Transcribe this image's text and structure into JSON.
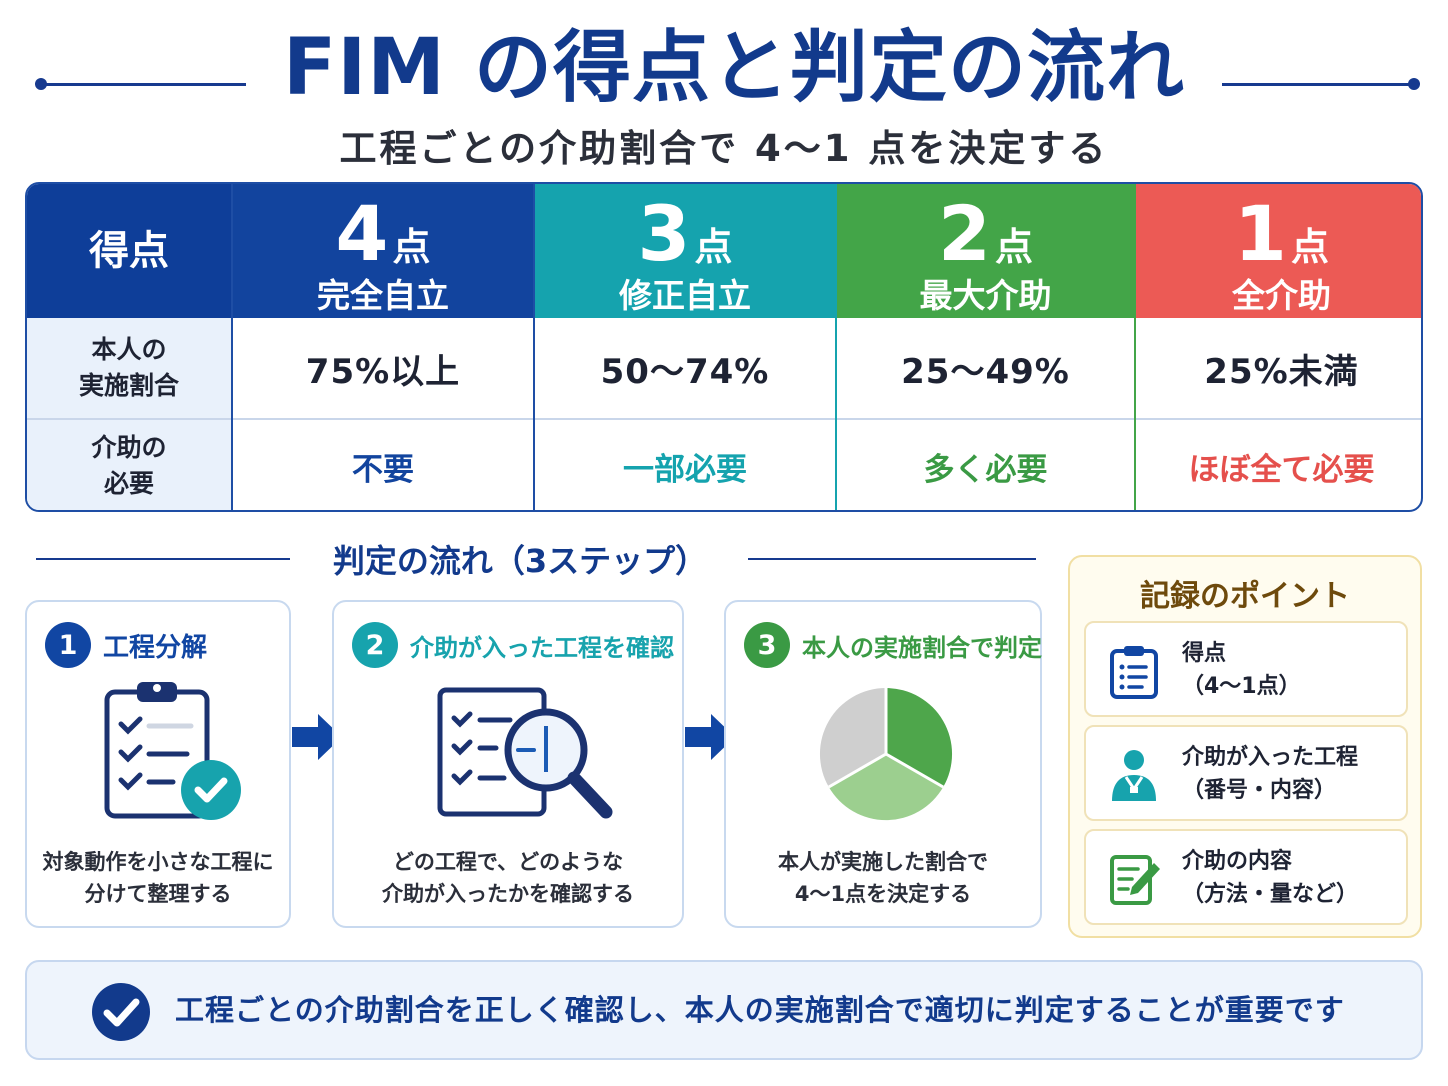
{
  "header": {
    "title": "FIM の得点と判定の流れ",
    "subtitle": "工程ごとの介助割合で 4～1 点を決定する"
  },
  "score_table": {
    "header_label": "得点",
    "row1_label_line1": "本人の",
    "row1_label_line2": "実施割合",
    "row2_label_line1": "介助の",
    "row2_label_line2": "必要",
    "columns": [
      {
        "score": "4",
        "unit": "点",
        "name": "完全自立",
        "ratio": "75%以上",
        "need": "不要",
        "color": "#12449e"
      },
      {
        "score": "3",
        "unit": "点",
        "name": "修正自立",
        "ratio": "50～74%",
        "need": "一部必要",
        "color": "#15a3ae"
      },
      {
        "score": "2",
        "unit": "点",
        "name": "最大介助",
        "ratio": "25～49%",
        "need": "多く必要",
        "color": "#43a548"
      },
      {
        "score": "1",
        "unit": "点",
        "name": "全介助",
        "ratio": "25%未満",
        "need": "ほぼ全て必要",
        "color": "#ec5a55"
      }
    ]
  },
  "flow": {
    "title": "判定の流れ（3ステップ）",
    "steps": [
      {
        "num": "1",
        "label": "工程分解",
        "desc_line1": "対象動作を小さな工程に",
        "desc_line2": "分けて整理する",
        "color": "#1146a3",
        "icon": "clipboard-check-icon"
      },
      {
        "num": "2",
        "label": "介助が入った工程を確認",
        "desc_line1": "どの工程で、どのような",
        "desc_line2": "介助が入ったかを確認する",
        "color": "#17a3ad",
        "icon": "checklist-magnifier-icon"
      },
      {
        "num": "3",
        "label": "本人の実施割合で判定",
        "desc_line1": "本人が実施した割合で",
        "desc_line2": "4～1点を決定する",
        "color": "#3a9a44",
        "icon": "pie-chart-icon"
      }
    ]
  },
  "record": {
    "title": "記録のポイント",
    "items": [
      {
        "line1": "得点",
        "line2": "（4～1点）",
        "icon": "clipboard-list-icon"
      },
      {
        "line1": "介助が入った工程",
        "line2": "（番号・内容）",
        "icon": "person-icon"
      },
      {
        "line1": "介助の内容",
        "line2": "（方法・量など）",
        "icon": "edit-note-icon"
      }
    ]
  },
  "banner": {
    "text": "工程ごとの介助割合を正しく確認し、本人の実施割合で適切に判定することが重要です",
    "icon": "check-circle-icon"
  },
  "colors": {
    "navy": "#123a8c",
    "teal": "#15a3ae",
    "green": "#43a548",
    "red": "#ec5a55"
  }
}
